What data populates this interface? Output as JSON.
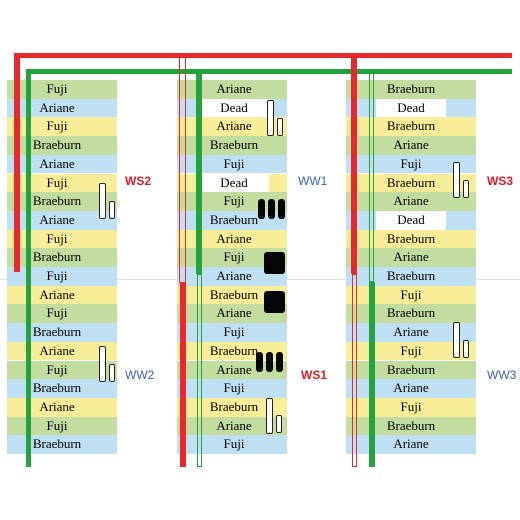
{
  "colors": {
    "blue": "#bfe0f3",
    "green": "#c3dca0",
    "yellow": "#f8ee9a",
    "red_pipe": "#e8292c",
    "green_pipe": "#22a43a",
    "s_label": "#e11b22",
    "w_label": "#3a5fb8"
  },
  "columns": [
    {
      "id": "left",
      "cells": [
        "Fuji",
        "Ariane",
        "Fuji",
        "Braeburn",
        "Ariane",
        "Fuji",
        "Braeburn",
        "Ariane",
        "Fuji",
        "Braeburn",
        "Fuji",
        "Ariane",
        "Fuji",
        "Braeburn",
        "Ariane",
        "Fuji",
        "Braeburn",
        "Ariane",
        "Fuji",
        "Braeburn"
      ]
    },
    {
      "id": "middle",
      "cells": [
        "Ariane",
        "Dead",
        "Ariane",
        "Braeburn",
        "Fuji",
        "Dead",
        "Fuji",
        "Braeburn",
        "Ariane",
        "Fuji",
        "Ariane",
        "Braeburn",
        "Ariane",
        "Fuji",
        "Braeburn",
        "Ariane",
        "Fuji",
        "Braeburn",
        "Ariane",
        "Fuji"
      ]
    },
    {
      "id": "right",
      "cells": [
        "Braeburn",
        "Dead",
        "Braeburn",
        "Ariane",
        "Fuji",
        "Braeburn",
        "Ariane",
        "Dead",
        "Braeburn",
        "Ariane",
        "Braeburn",
        "Fuji",
        "Braeburn",
        "Ariane",
        "Fuji",
        "Braeburn",
        "Ariane",
        "Fuji",
        "Braeburn",
        "Ariane"
      ]
    }
  ],
  "labels": {
    "ws1": "WS1",
    "ws2": "WS2",
    "ws3": "WS3",
    "ww1": "WW1",
    "ww2": "WW2",
    "ww3": "WW3"
  }
}
